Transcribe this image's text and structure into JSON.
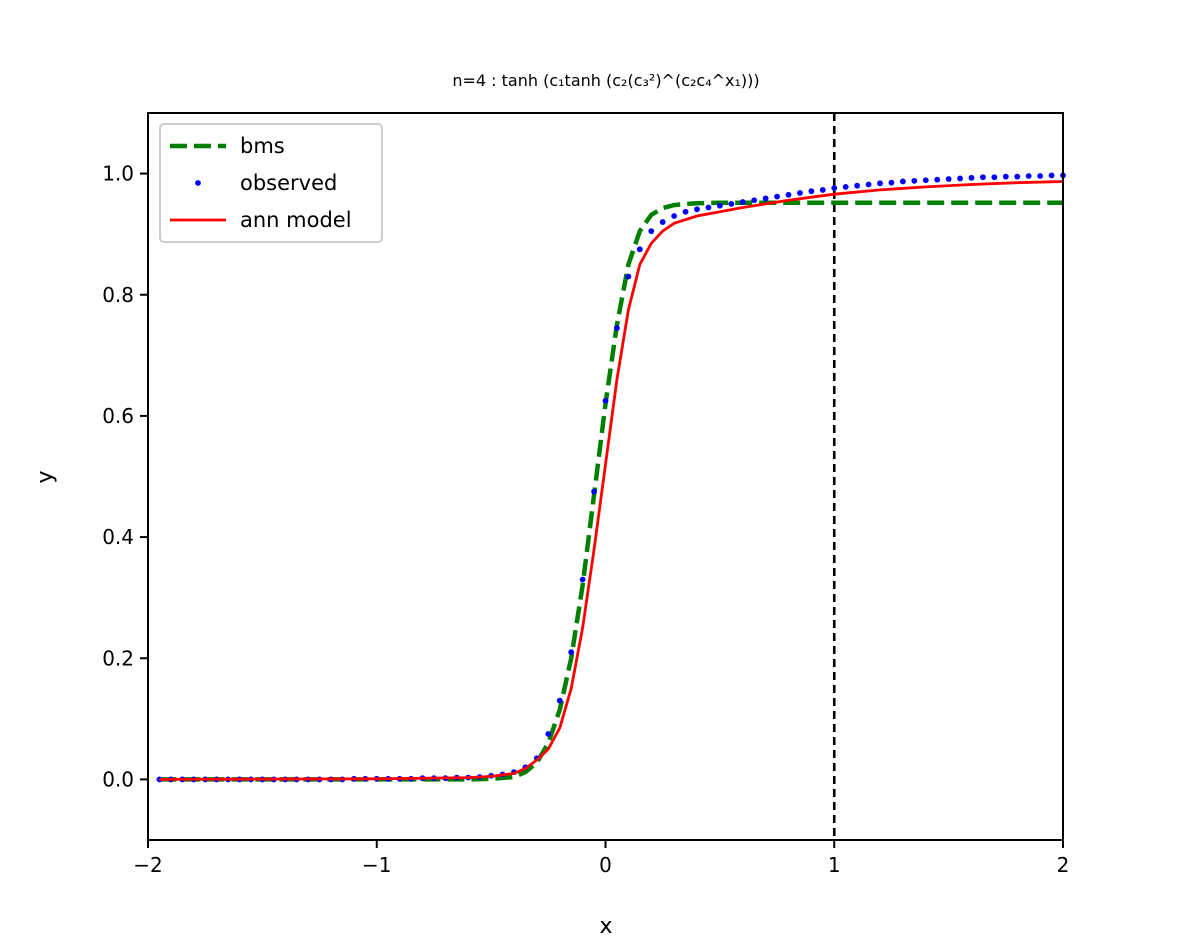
{
  "chart_data": {
    "type": "line",
    "title": "n=4 : tanh (c₁tanh (c₂(c₃²)^(c₂c₄^x₁)))",
    "xlabel": "x",
    "ylabel": "y",
    "xlim": [
      -2,
      2
    ],
    "ylim": [
      -0.1,
      1.1
    ],
    "xticks": [
      -2,
      -1,
      0,
      1,
      2
    ],
    "xtick_labels": [
      "−2",
      "−1",
      "0",
      "1",
      "2"
    ],
    "yticks": [
      0.0,
      0.2,
      0.4,
      0.6,
      0.8,
      1.0
    ],
    "ytick_labels": [
      "0.0",
      "0.2",
      "0.4",
      "0.6",
      "0.8",
      "1.0"
    ],
    "grid": false,
    "legend_position": "top-left",
    "vline_x": 1,
    "series": [
      {
        "name": "bms",
        "style": "dashed",
        "color": "#008000",
        "x": [
          -1.95,
          -1.0,
          -0.6,
          -0.5,
          -0.4,
          -0.35,
          -0.3,
          -0.25,
          -0.2,
          -0.15,
          -0.1,
          -0.05,
          0.0,
          0.05,
          0.1,
          0.15,
          0.2,
          0.25,
          0.3,
          0.35,
          0.4,
          0.5,
          0.6,
          0.8,
          1.0,
          1.5,
          2.0
        ],
        "y": [
          0.0,
          0.0,
          0.0,
          0.001,
          0.004,
          0.012,
          0.028,
          0.06,
          0.115,
          0.2,
          0.32,
          0.47,
          0.62,
          0.75,
          0.85,
          0.905,
          0.932,
          0.943,
          0.948,
          0.95,
          0.951,
          0.952,
          0.952,
          0.952,
          0.952,
          0.952,
          0.952
        ]
      },
      {
        "name": "observed",
        "style": "dots",
        "color": "#0000ff",
        "x": [
          -1.95,
          -1.9,
          -1.85,
          -1.8,
          -1.75,
          -1.7,
          -1.65,
          -1.6,
          -1.55,
          -1.5,
          -1.45,
          -1.4,
          -1.35,
          -1.3,
          -1.25,
          -1.2,
          -1.15,
          -1.1,
          -1.05,
          -1.0,
          -0.95,
          -0.9,
          -0.85,
          -0.8,
          -0.75,
          -0.7,
          -0.65,
          -0.6,
          -0.55,
          -0.5,
          -0.45,
          -0.4,
          -0.35,
          -0.3,
          -0.25,
          -0.2,
          -0.15,
          -0.1,
          -0.05,
          0.0,
          0.05,
          0.1,
          0.15,
          0.2,
          0.25,
          0.3,
          0.35,
          0.4,
          0.45,
          0.5,
          0.55,
          0.6,
          0.65,
          0.7,
          0.75,
          0.8,
          0.85,
          0.9,
          0.95,
          1.0,
          1.05,
          1.1,
          1.15,
          1.2,
          1.25,
          1.3,
          1.35,
          1.4,
          1.45,
          1.5,
          1.55,
          1.6,
          1.65,
          1.7,
          1.75,
          1.8,
          1.85,
          1.9,
          1.95,
          2.0
        ],
        "y": [
          0.0,
          0.0,
          0.0,
          0.0,
          0.0,
          0.0,
          0.0,
          0.0,
          0.0,
          0.0,
          0.0,
          0.0,
          0.0,
          0.0,
          0.0,
          0.0,
          0.0,
          0.001,
          0.001,
          0.001,
          0.001,
          0.001,
          0.001,
          0.002,
          0.002,
          0.002,
          0.003,
          0.003,
          0.004,
          0.006,
          0.008,
          0.012,
          0.02,
          0.035,
          0.075,
          0.13,
          0.21,
          0.33,
          0.475,
          0.625,
          0.745,
          0.83,
          0.875,
          0.905,
          0.92,
          0.93,
          0.937,
          0.941,
          0.944,
          0.947,
          0.95,
          0.953,
          0.956,
          0.959,
          0.962,
          0.965,
          0.968,
          0.971,
          0.973,
          0.976,
          0.978,
          0.98,
          0.982,
          0.984,
          0.985,
          0.987,
          0.988,
          0.989,
          0.99,
          0.991,
          0.992,
          0.993,
          0.994,
          0.994,
          0.995,
          0.995,
          0.996,
          0.996,
          0.997,
          0.997
        ]
      },
      {
        "name": "ann model",
        "style": "solid",
        "color": "#ff0000",
        "x": [
          -1.95,
          -1.0,
          -0.6,
          -0.5,
          -0.4,
          -0.35,
          -0.3,
          -0.25,
          -0.2,
          -0.15,
          -0.1,
          -0.05,
          0.0,
          0.05,
          0.1,
          0.15,
          0.2,
          0.25,
          0.3,
          0.4,
          0.5,
          0.6,
          0.8,
          1.0,
          1.2,
          1.4,
          1.6,
          1.8,
          2.0
        ],
        "y": [
          0.0,
          0.001,
          0.003,
          0.005,
          0.01,
          0.018,
          0.032,
          0.05,
          0.085,
          0.15,
          0.25,
          0.38,
          0.52,
          0.66,
          0.775,
          0.85,
          0.885,
          0.905,
          0.918,
          0.93,
          0.937,
          0.944,
          0.956,
          0.966,
          0.973,
          0.978,
          0.982,
          0.985,
          0.987
        ]
      }
    ]
  }
}
